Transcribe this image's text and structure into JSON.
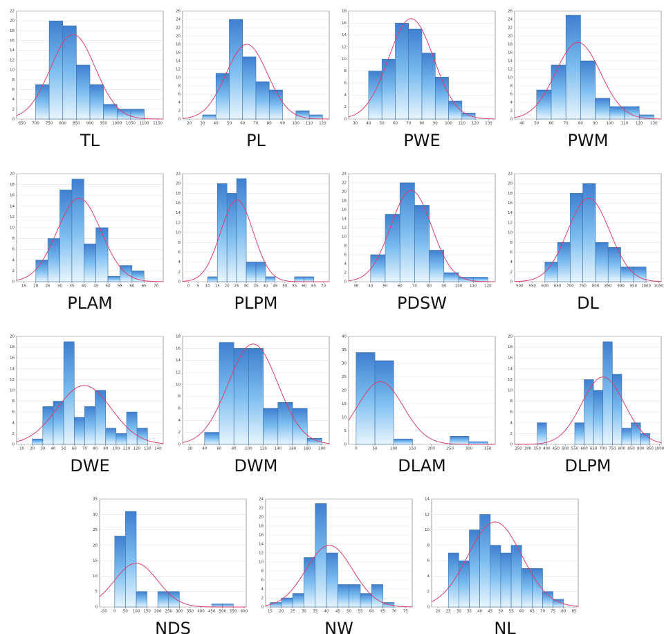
{
  "chart_data": [
    {
      "type": "histogram",
      "title": "TL",
      "bins": [
        700,
        750,
        800,
        850,
        900,
        950,
        1000,
        1050,
        1100
      ],
      "values": [
        7,
        20,
        19,
        11,
        7,
        3,
        2,
        2
      ],
      "xlim": [
        630,
        1170
      ],
      "xticks": [
        650,
        700,
        750,
        800,
        850,
        900,
        950,
        1000,
        1050,
        1100,
        1150
      ],
      "ylim": [
        0,
        22
      ],
      "yticks": [
        0,
        2,
        4,
        6,
        8,
        10,
        12,
        14,
        16,
        18,
        20,
        22
      ],
      "grid": true,
      "normal_fit": true
    },
    {
      "type": "histogram",
      "title": "PL",
      "bins": [
        30,
        40,
        50,
        60,
        70,
        80,
        90,
        100,
        110,
        120
      ],
      "values": [
        1,
        11,
        24,
        15,
        9,
        7,
        0,
        2,
        1
      ],
      "xlim": [
        15,
        125
      ],
      "xticks": [
        20,
        30,
        40,
        50,
        60,
        70,
        80,
        90,
        100,
        110,
        120
      ],
      "ylim": [
        0,
        26
      ],
      "yticks": [
        0,
        2,
        4,
        6,
        8,
        10,
        12,
        14,
        16,
        18,
        20,
        22,
        24,
        26
      ],
      "grid": true,
      "normal_fit": true
    },
    {
      "type": "histogram",
      "title": "PWE",
      "bins": [
        40,
        50,
        60,
        70,
        80,
        90,
        100,
        110,
        120
      ],
      "values": [
        8,
        10,
        16,
        15,
        11,
        7,
        3,
        1
      ],
      "xlim": [
        25,
        135
      ],
      "xticks": [
        30,
        40,
        50,
        60,
        70,
        80,
        90,
        100,
        110,
        120,
        130
      ],
      "ylim": [
        0,
        18
      ],
      "yticks": [
        0,
        2,
        4,
        6,
        8,
        10,
        12,
        14,
        16,
        18
      ],
      "grid": true,
      "normal_fit": true
    },
    {
      "type": "histogram",
      "title": "PWM",
      "bins": [
        50,
        60,
        70,
        80,
        90,
        100,
        110,
        120,
        130
      ],
      "values": [
        7,
        13,
        25,
        14,
        5,
        3,
        3,
        1
      ],
      "xlim": [
        35,
        135
      ],
      "xticks": [
        40,
        50,
        60,
        70,
        80,
        90,
        100,
        110,
        120,
        130
      ],
      "ylim": [
        0,
        26
      ],
      "yticks": [
        0,
        2,
        4,
        6,
        8,
        10,
        12,
        14,
        16,
        18,
        20,
        22,
        24,
        26
      ],
      "grid": true,
      "normal_fit": true
    },
    {
      "type": "histogram",
      "title": "PLAM",
      "bins": [
        20,
        25,
        30,
        35,
        40,
        45,
        50,
        55,
        60,
        65
      ],
      "values": [
        4,
        8,
        17,
        19,
        7,
        10,
        1,
        3,
        2
      ],
      "xlim": [
        12,
        73
      ],
      "xticks": [
        15,
        20,
        25,
        30,
        35,
        40,
        45,
        50,
        55,
        60,
        65,
        70
      ],
      "ylim": [
        0,
        20
      ],
      "yticks": [
        0,
        2,
        4,
        6,
        8,
        10,
        12,
        14,
        16,
        18,
        20
      ],
      "grid": true,
      "normal_fit": true
    },
    {
      "type": "histogram",
      "title": "PLPM",
      "bins": [
        10,
        15,
        20,
        25,
        30,
        35,
        40,
        45,
        50,
        55,
        60,
        65
      ],
      "values": [
        1,
        20,
        18,
        21,
        4,
        4,
        1,
        0,
        0,
        1,
        1
      ],
      "xlim": [
        -3,
        73
      ],
      "xticks": [
        0,
        5,
        10,
        15,
        20,
        25,
        30,
        35,
        40,
        45,
        50,
        55,
        60,
        65,
        70
      ],
      "ylim": [
        0,
        22
      ],
      "yticks": [
        0,
        2,
        4,
        6,
        8,
        10,
        12,
        14,
        16,
        18,
        20,
        22
      ],
      "grid": true,
      "normal_fit": true
    },
    {
      "type": "histogram",
      "title": "PDSW",
      "bins": [
        40,
        50,
        60,
        70,
        80,
        90,
        100,
        110,
        120
      ],
      "values": [
        6,
        15,
        22,
        17,
        7,
        2,
        1,
        1
      ],
      "xlim": [
        25,
        125
      ],
      "xticks": [
        30,
        40,
        50,
        60,
        70,
        80,
        90,
        100,
        110,
        120
      ],
      "ylim": [
        0,
        24
      ],
      "yticks": [
        0,
        2,
        4,
        6,
        8,
        10,
        12,
        14,
        16,
        18,
        20,
        22,
        24
      ],
      "grid": true,
      "normal_fit": true
    },
    {
      "type": "histogram",
      "title": "DL",
      "bins": [
        600,
        650,
        700,
        750,
        800,
        850,
        900,
        950,
        1000
      ],
      "values": [
        4,
        8,
        18,
        20,
        8,
        7,
        3,
        3
      ],
      "xlim": [
        480,
        1060
      ],
      "xticks": [
        500,
        550,
        600,
        650,
        700,
        750,
        800,
        850,
        900,
        950,
        1000,
        1050
      ],
      "ylim": [
        0,
        22
      ],
      "yticks": [
        0,
        2,
        4,
        6,
        8,
        10,
        12,
        14,
        16,
        18,
        20,
        22
      ],
      "grid": true,
      "normal_fit": true
    },
    {
      "type": "histogram",
      "title": "DWE",
      "bins": [
        20,
        30,
        40,
        50,
        60,
        70,
        80,
        90,
        100,
        110,
        120,
        130
      ],
      "values": [
        1,
        7,
        8,
        19,
        5,
        7,
        10,
        3,
        2,
        6,
        3
      ],
      "xlim": [
        5,
        145
      ],
      "xticks": [
        10,
        20,
        30,
        40,
        50,
        60,
        70,
        80,
        90,
        100,
        110,
        120,
        130,
        140
      ],
      "ylim": [
        0,
        20
      ],
      "yticks": [
        0,
        2,
        4,
        6,
        8,
        10,
        12,
        14,
        16,
        18,
        20
      ],
      "grid": true,
      "normal_fit": true
    },
    {
      "type": "histogram",
      "title": "DWM",
      "bins": [
        40,
        60,
        80,
        100,
        120,
        140,
        160,
        180,
        200
      ],
      "values": [
        2,
        17,
        16,
        16,
        6,
        7,
        6,
        1
      ],
      "xlim": [
        10,
        210
      ],
      "xticks": [
        20,
        40,
        60,
        80,
        100,
        120,
        140,
        160,
        180,
        200
      ],
      "ylim": [
        0,
        18
      ],
      "yticks": [
        0,
        2,
        4,
        6,
        8,
        10,
        12,
        14,
        16,
        18
      ],
      "grid": true,
      "normal_fit": true
    },
    {
      "type": "histogram",
      "title": "DLAM",
      "bins": [
        0,
        50,
        100,
        150,
        200,
        250,
        300,
        350
      ],
      "values": [
        34,
        31,
        2,
        0,
        0,
        3,
        1
      ],
      "xlim": [
        -20,
        370
      ],
      "xticks": [
        0,
        50,
        100,
        150,
        200,
        250,
        300,
        350
      ],
      "ylim": [
        0,
        40
      ],
      "yticks": [
        0,
        5,
        10,
        15,
        20,
        25,
        30,
        35,
        40
      ],
      "grid": true,
      "normal_fit": true
    },
    {
      "type": "histogram",
      "title": "DLPM",
      "bins": [
        350,
        400,
        450,
        500,
        550,
        600,
        650,
        700,
        750,
        800,
        850,
        900,
        950
      ],
      "values": [
        4,
        0,
        0,
        0,
        4,
        12,
        10,
        19,
        13,
        3,
        4,
        2
      ],
      "xlim": [
        230,
        1010
      ],
      "xticks": [
        250,
        300,
        350,
        400,
        450,
        500,
        550,
        600,
        650,
        700,
        750,
        800,
        850,
        900,
        950,
        1000
      ],
      "ylim": [
        0,
        20
      ],
      "yticks": [
        0,
        2,
        4,
        6,
        8,
        10,
        12,
        14,
        16,
        18,
        20
      ],
      "grid": true,
      "normal_fit": true
    },
    {
      "type": "histogram",
      "title": "NDS",
      "bins": [
        0,
        50,
        100,
        150,
        200,
        250,
        300,
        350,
        400,
        450,
        500,
        550
      ],
      "values": [
        23,
        31,
        5,
        0,
        5,
        5,
        0,
        0,
        0,
        1,
        1
      ],
      "xlim": [
        -70,
        610
      ],
      "xticks": [
        -50,
        0,
        50,
        100,
        150,
        200,
        250,
        300,
        350,
        400,
        450,
        500,
        550,
        600
      ],
      "ylim": [
        0,
        35
      ],
      "yticks": [
        0,
        5,
        10,
        15,
        20,
        25,
        30,
        35
      ],
      "grid": true,
      "normal_fit": true
    },
    {
      "type": "histogram",
      "title": "NW",
      "bins": [
        15,
        20,
        25,
        30,
        35,
        40,
        45,
        50,
        55,
        60,
        65,
        70
      ],
      "values": [
        1,
        2,
        3,
        11,
        23,
        12,
        5,
        5,
        3,
        5,
        1
      ],
      "xlim": [
        13,
        78
      ],
      "xticks": [
        15,
        20,
        25,
        30,
        35,
        40,
        45,
        50,
        55,
        60,
        65,
        70,
        75
      ],
      "ylim": [
        0,
        24
      ],
      "yticks": [
        0,
        2,
        4,
        6,
        8,
        10,
        12,
        14,
        16,
        18,
        20,
        22,
        24
      ],
      "grid": true,
      "normal_fit": true
    },
    {
      "type": "histogram",
      "title": "NL",
      "bins": [
        25,
        30,
        35,
        40,
        45,
        50,
        55,
        60,
        65,
        70,
        75,
        80
      ],
      "values": [
        7,
        6,
        10,
        12,
        8,
        7,
        8,
        5,
        5,
        2,
        1
      ],
      "xlim": [
        17,
        87
      ],
      "xticks": [
        20,
        25,
        30,
        35,
        40,
        45,
        50,
        55,
        60,
        65,
        70,
        75,
        80,
        85
      ],
      "ylim": [
        0,
        14
      ],
      "yticks": [
        0,
        2,
        4,
        6,
        8,
        10,
        12,
        14
      ],
      "grid": true,
      "normal_fit": true
    }
  ]
}
